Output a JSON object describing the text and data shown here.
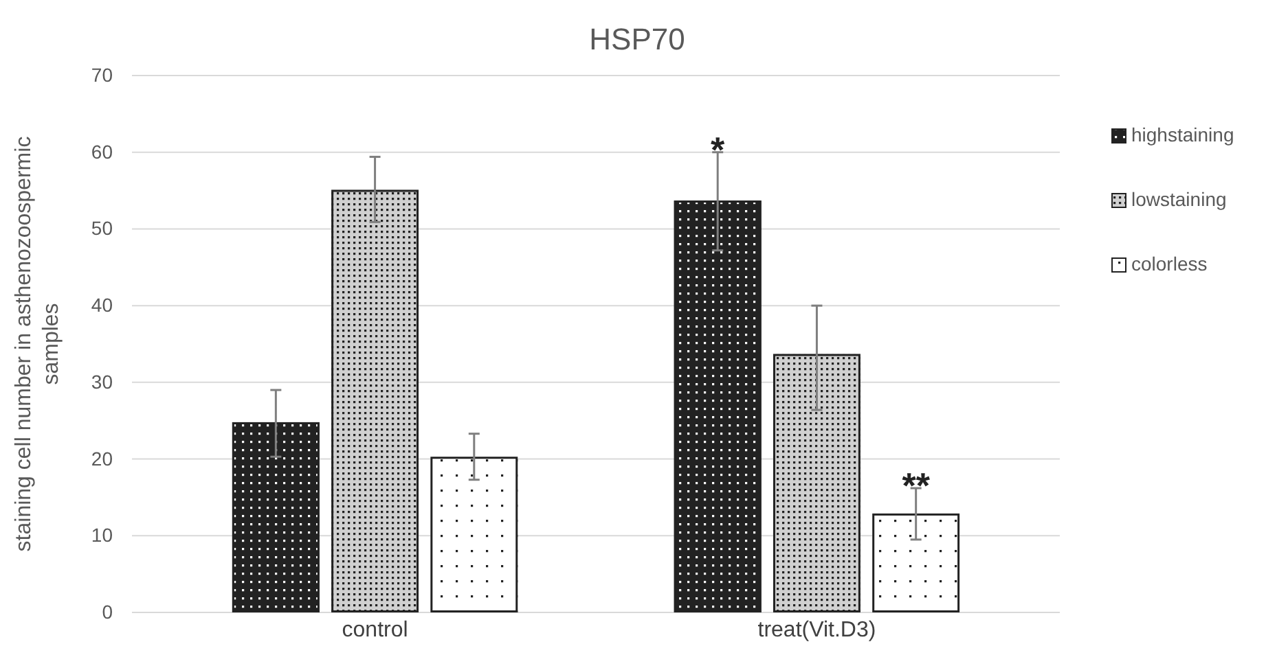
{
  "chart_data": {
    "type": "bar",
    "title": "HSP70",
    "ylabel": "staining cell number in asthenozoospermic samples",
    "categories": [
      "control",
      "treat(Vit.D3)"
    ],
    "series": [
      {
        "name": "highstaining",
        "color": "#222222",
        "values": [
          24.8,
          53.7
        ],
        "errors": [
          [
            20.3,
            29.0
          ],
          [
            47.2,
            60.0
          ]
        ]
      },
      {
        "name": "lowstaining",
        "color": "#d0d0d0",
        "values": [
          55.1,
          33.7
        ],
        "errors": [
          [
            50.9,
            59.4
          ],
          [
            26.4,
            40.0
          ]
        ]
      },
      {
        "name": "colorless",
        "color": "#ffffff",
        "values": [
          20.3,
          12.9
        ],
        "errors": [
          [
            17.3,
            23.3
          ],
          [
            9.5,
            16.2
          ]
        ]
      }
    ],
    "ylim": [
      0,
      70
    ],
    "yticks": [
      0,
      10,
      20,
      30,
      40,
      50,
      60,
      70
    ],
    "grid": "y",
    "legend": "right",
    "annotations": [
      "*",
      "**"
    ]
  }
}
